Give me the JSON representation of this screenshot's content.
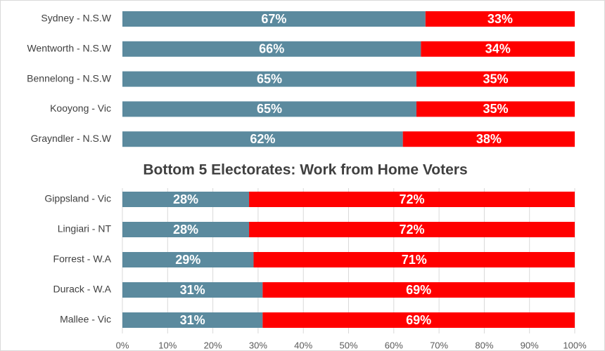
{
  "chart_data": [
    {
      "type": "bar",
      "orientation": "horizontal",
      "stacked": true,
      "categories": [
        "Sydney - N.S.W",
        "Wentworth - N.S.W",
        "Bennelong - N.S.W",
        "Kooyong - Vic",
        "Grayndler - N.S.W"
      ],
      "series": [
        {
          "color": "#5b8a9e",
          "values": [
            67,
            66,
            65,
            65,
            62
          ],
          "value_labels": [
            "67%",
            "66%",
            "65%",
            "65%",
            "62%"
          ]
        },
        {
          "color": "#ff0000",
          "values": [
            33,
            34,
            35,
            35,
            38
          ],
          "value_labels": [
            "33%",
            "34%",
            "35%",
            "35%",
            "38%"
          ]
        }
      ],
      "xlim": [
        0,
        100
      ]
    },
    {
      "type": "bar",
      "orientation": "horizontal",
      "stacked": true,
      "title": "Bottom 5 Electorates: Work from Home Voters",
      "categories": [
        "Gippsland - Vic",
        "Lingiari - NT",
        "Forrest - W.A",
        "Durack - W.A",
        "Mallee - Vic"
      ],
      "series": [
        {
          "color": "#5b8a9e",
          "values": [
            28,
            28,
            29,
            31,
            31
          ],
          "value_labels": [
            "28%",
            "28%",
            "29%",
            "31%",
            "31%"
          ]
        },
        {
          "color": "#ff0000",
          "values": [
            72,
            72,
            71,
            69,
            69
          ],
          "value_labels": [
            "72%",
            "72%",
            "71%",
            "69%",
            "69%"
          ]
        }
      ],
      "xlim": [
        0,
        100
      ],
      "xticks": [
        {
          "value": 0,
          "label": "0%"
        },
        {
          "value": 10,
          "label": "10%"
        },
        {
          "value": 20,
          "label": "20%"
        },
        {
          "value": 30,
          "label": "30%"
        },
        {
          "value": 40,
          "label": "40%"
        },
        {
          "value": 50,
          "label": "50%"
        },
        {
          "value": 60,
          "label": "60%"
        },
        {
          "value": 70,
          "label": "70%"
        },
        {
          "value": 80,
          "label": "80%"
        },
        {
          "value": 90,
          "label": "90%"
        },
        {
          "value": 100,
          "label": "100%"
        }
      ],
      "grid": true
    }
  ]
}
